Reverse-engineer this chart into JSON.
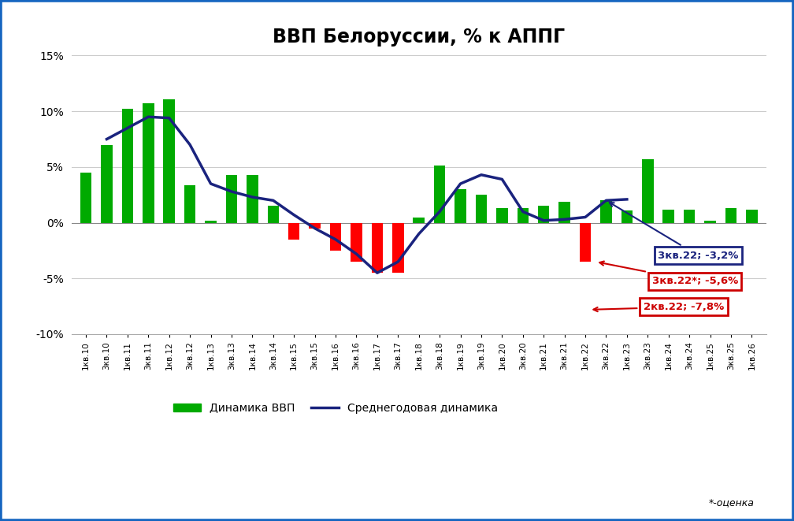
{
  "title": "ВВП Белоруссии, % к АППГ",
  "categories": [
    "1кв.10",
    "3кв.10",
    "1кв.11",
    "3кв.11",
    "1кв.12",
    "3кв.12",
    "1кв.13",
    "3кв.13",
    "1кв.14",
    "3кв.14",
    "1кв.15",
    "3кв.15",
    "1кв.16",
    "3кв.16",
    "1кв.17",
    "3кв.17",
    "1кв.18",
    "3кв.18",
    "1кв.19",
    "3кв.19",
    "1кв.20",
    "3кв.20",
    "1кв.21",
    "3кв.21",
    "1кв.22",
    "3кв.22",
    "1кв.23",
    "3кв.23",
    "1кв.24",
    "3кв.24",
    "1кв.25",
    "3кв.25",
    "1кв.26"
  ],
  "bar_values": [
    4.5,
    7.0,
    10.2,
    10.7,
    11.1,
    3.4,
    0.2,
    4.3,
    4.3,
    1.5,
    -1.5,
    -0.5,
    -2.5,
    -3.5,
    -4.5,
    -4.5,
    0.5,
    5.1,
    3.0,
    2.5,
    1.3,
    1.3,
    1.5,
    1.9,
    -3.5,
    2.0,
    1.1,
    5.7,
    1.2,
    1.2,
    0.2,
    1.3,
    1.2
  ],
  "bar_colors_positive": "#00aa00",
  "bar_colors_negative": "#ff0000",
  "line_values": [
    null,
    7.5,
    8.5,
    9.5,
    9.4,
    7.0,
    3.5,
    2.8,
    2.3,
    2.0,
    0.7,
    -0.5,
    -1.5,
    -2.8,
    -4.5,
    -3.5,
    -1.0,
    1.0,
    3.5,
    4.3,
    3.9,
    1.0,
    0.2,
    0.3,
    0.5,
    2.0,
    2.1,
    null,
    null,
    null,
    null,
    null,
    null
  ],
  "line_color": "#1a237e",
  "ylim": [
    -10,
    15
  ],
  "yticks": [
    -10,
    -5,
    0,
    5,
    10,
    15
  ],
  "ytick_labels": [
    "-10%",
    "-5%",
    "0%",
    "5%",
    "10%",
    "15%"
  ],
  "ann1_text": "3кв.22; -3,2%",
  "ann1_color": "#1a237e",
  "ann2_text": "3кв.22*; -5,6%",
  "ann2_color": "#cc0000",
  "ann3_text": "2кв.22; -7,8%",
  "ann3_color": "#cc0000",
  "footnote": "*-оценка",
  "legend_bar_label": "Динамика ВВП",
  "legend_line_label": "Среднегодовая динамика",
  "border_color": "#1565c0"
}
